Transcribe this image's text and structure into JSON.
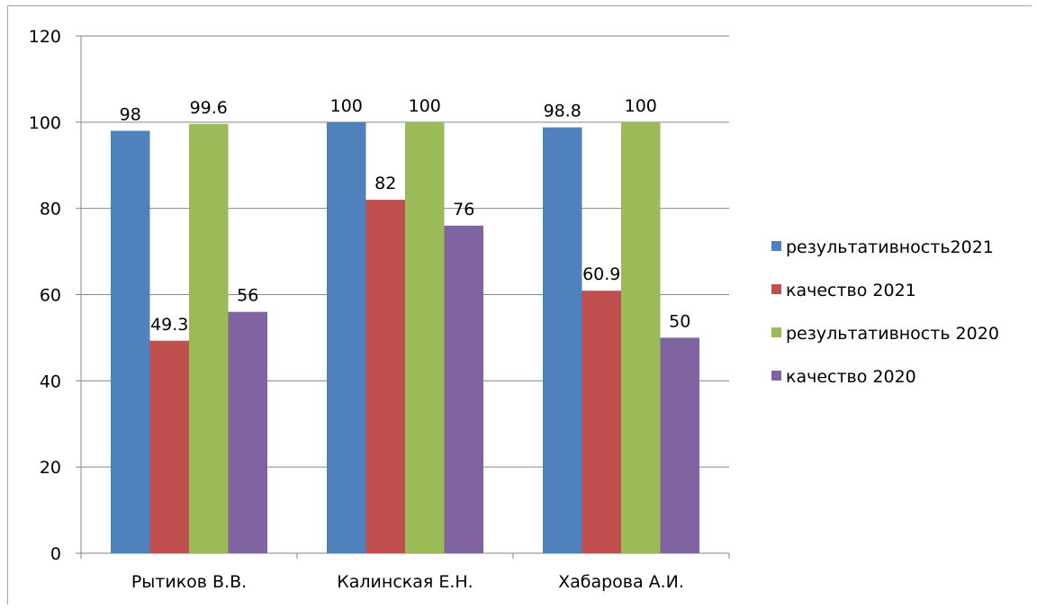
{
  "chart_data": {
    "type": "bar",
    "categories": [
      "Рытиков В.В.",
      "Калинская Е.Н.",
      "Хабарова А.И."
    ],
    "series": [
      {
        "name": "результативность2021",
        "color": "#4f81bd",
        "values": [
          98,
          100,
          98.8
        ],
        "labels": [
          "98",
          "100",
          "98.8"
        ]
      },
      {
        "name": "качество 2021",
        "color": "#c0504d",
        "values": [
          49.3,
          82,
          60.9
        ],
        "labels": [
          "49.3",
          "82",
          "60.9"
        ]
      },
      {
        "name": "результативность 2020",
        "color": "#9bbb59",
        "values": [
          99.6,
          100,
          100
        ],
        "labels": [
          "99.6",
          "100",
          "100"
        ]
      },
      {
        "name": "качество 2020",
        "color": "#8064a2",
        "values": [
          56,
          76,
          50
        ],
        "labels": [
          "56",
          "76",
          "50"
        ]
      }
    ],
    "ylim": [
      0,
      120
    ],
    "yticks": [
      0,
      20,
      40,
      60,
      80,
      100,
      120
    ],
    "grid": true,
    "legend": "right",
    "title": "",
    "xlabel": "",
    "ylabel": ""
  }
}
